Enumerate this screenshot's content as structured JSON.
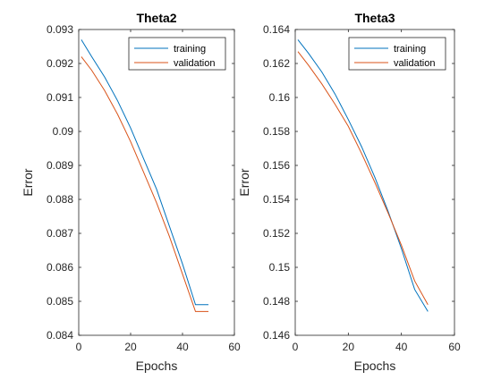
{
  "chart_data": [
    {
      "type": "line",
      "title": "Theta2",
      "xlabel": "Epochs",
      "ylabel": "Error",
      "xlim": [
        0,
        60
      ],
      "ylim": [
        0.084,
        0.093
      ],
      "xticks": [
        0,
        20,
        40,
        60
      ],
      "xtick_labels": [
        "0",
        "20",
        "40",
        "60"
      ],
      "yticks": [
        0.084,
        0.085,
        0.086,
        0.087,
        0.088,
        0.089,
        0.09,
        0.091,
        0.092,
        0.093
      ],
      "ytick_labels": [
        "0.084",
        "0.085",
        "0.086",
        "0.087",
        "0.088",
        "0.089",
        "0.09",
        "0.091",
        "0.092",
        "0.093"
      ],
      "grid": false,
      "legend_position": "top-right",
      "series": [
        {
          "name": "training",
          "color": "#0072BD",
          "x": [
            1,
            5,
            10,
            15,
            20,
            25,
            30,
            35,
            40,
            45,
            50
          ],
          "y": [
            0.0927,
            0.0922,
            0.0916,
            0.0909,
            0.0901,
            0.0892,
            0.0883,
            0.0872,
            0.0861,
            0.0849,
            0.0849
          ]
        },
        {
          "name": "validation",
          "color": "#D95319",
          "x": [
            1,
            5,
            10,
            15,
            20,
            25,
            30,
            35,
            40,
            45,
            50
          ],
          "y": [
            0.0922,
            0.0918,
            0.0912,
            0.0905,
            0.0897,
            0.0888,
            0.0879,
            0.0869,
            0.0858,
            0.0847,
            0.0847
          ]
        }
      ]
    },
    {
      "type": "line",
      "title": "Theta3",
      "xlabel": "Epochs",
      "ylabel": "Error",
      "xlim": [
        0,
        60
      ],
      "ylim": [
        0.146,
        0.164
      ],
      "xticks": [
        0,
        20,
        40,
        60
      ],
      "xtick_labels": [
        "0",
        "20",
        "40",
        "60"
      ],
      "yticks": [
        0.146,
        0.148,
        0.15,
        0.152,
        0.154,
        0.156,
        0.158,
        0.16,
        0.162,
        0.164
      ],
      "ytick_labels": [
        "0.146",
        "0.148",
        "0.15",
        "0.152",
        "0.154",
        "0.156",
        "0.158",
        "0.16",
        "0.162",
        "0.164"
      ],
      "grid": false,
      "legend_position": "top-right",
      "series": [
        {
          "name": "training",
          "color": "#0072BD",
          "x": [
            1,
            5,
            10,
            15,
            20,
            25,
            30,
            35,
            40,
            45,
            50
          ],
          "y": [
            0.1634,
            0.1626,
            0.1615,
            0.1602,
            0.1587,
            0.1571,
            0.1553,
            0.1533,
            0.1511,
            0.1487,
            0.1474
          ]
        },
        {
          "name": "validation",
          "color": "#D95319",
          "x": [
            1,
            5,
            10,
            15,
            20,
            25,
            30,
            35,
            40,
            45,
            50
          ],
          "y": [
            0.1627,
            0.1619,
            0.1608,
            0.1596,
            0.1583,
            0.1567,
            0.155,
            0.1532,
            0.1513,
            0.1492,
            0.1478
          ]
        }
      ]
    }
  ]
}
